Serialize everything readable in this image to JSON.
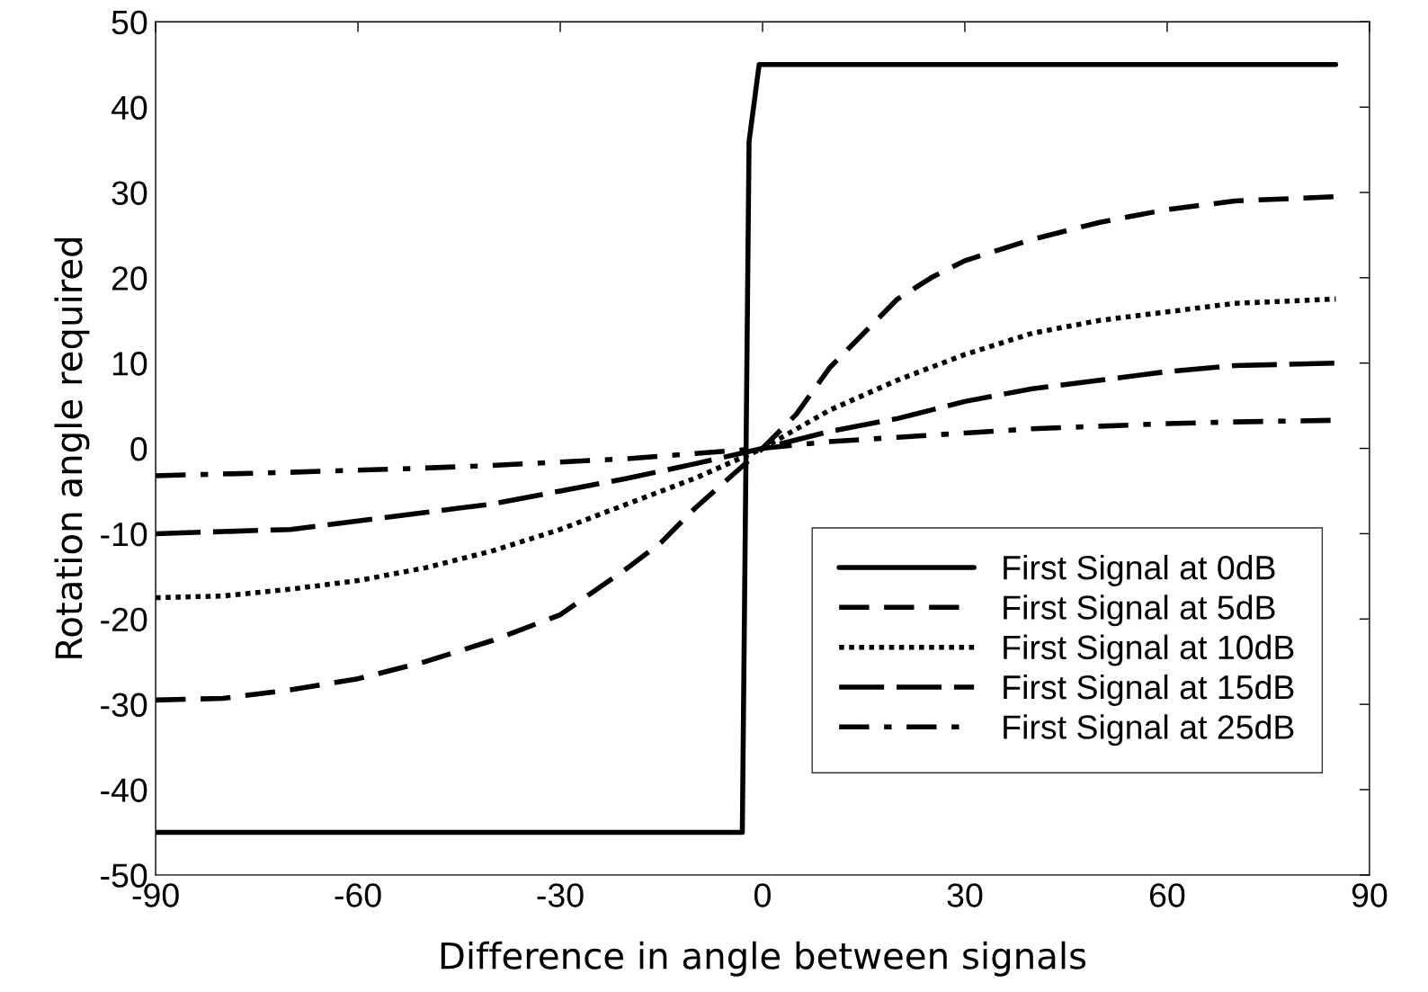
{
  "chart_data": {
    "type": "line",
    "xlabel": "Difference in angle between signals",
    "ylabel": "Rotation angle required",
    "xlim": [
      -90,
      90
    ],
    "ylim": [
      -50,
      50
    ],
    "xticks": [
      -90,
      -60,
      -30,
      0,
      30,
      60,
      90
    ],
    "yticks": [
      -50,
      -40,
      -30,
      -20,
      -10,
      0,
      10,
      20,
      30,
      40,
      50
    ],
    "grid": false,
    "legend": "bottom right",
    "marker": "none",
    "series": [
      {
        "name": "First Signal at 0dB",
        "color": "#000000",
        "line_style": "solid",
        "x": [
          -90,
          -3,
          -2,
          -0.5,
          85
        ],
        "values": [
          -45,
          -45,
          36,
          45,
          45
        ]
      },
      {
        "name": "First Signal at 5dB",
        "color": "#000000",
        "line_style": "dashed",
        "x": [
          -90,
          -80,
          -70,
          -60,
          -50,
          -40,
          -30,
          -20,
          -15,
          -10,
          -5,
          0,
          5,
          10,
          15,
          20,
          25,
          30,
          40,
          50,
          60,
          70,
          85
        ],
        "values": [
          -29.5,
          -29.3,
          -28.3,
          -27,
          -25,
          -22.5,
          -19.5,
          -14,
          -11,
          -7,
          -3.5,
          0,
          4,
          9.5,
          13.5,
          17.5,
          20,
          22,
          24.5,
          26.5,
          28,
          29,
          29.5
        ]
      },
      {
        "name": "First Signal at 10dB",
        "color": "#000000",
        "line_style": "dotted",
        "x": [
          -90,
          -80,
          -70,
          -60,
          -50,
          -40,
          -30,
          -20,
          -10,
          0,
          10,
          20,
          30,
          40,
          50,
          60,
          70,
          85
        ],
        "values": [
          -17.5,
          -17.3,
          -16.5,
          -15.5,
          -14,
          -12,
          -9.5,
          -6.5,
          -3.5,
          0,
          4.5,
          8,
          11,
          13.5,
          15,
          16,
          17,
          17.5
        ]
      },
      {
        "name": "First Signal at 15dB",
        "color": "#000000",
        "line_style": "longdashed",
        "x": [
          -90,
          -70,
          -60,
          -50,
          -40,
          -30,
          -20,
          -10,
          0,
          10,
          20,
          30,
          40,
          50,
          60,
          70,
          85
        ],
        "values": [
          -10,
          -9.5,
          -8.5,
          -7.5,
          -6.5,
          -5,
          -3.5,
          -1.8,
          0,
          2,
          3.5,
          5.5,
          7,
          8,
          9,
          9.7,
          10
        ]
      },
      {
        "name": "First Signal at 25dB",
        "color": "#000000",
        "line_style": "dashdot",
        "x": [
          -90,
          -70,
          -50,
          -40,
          -30,
          -20,
          -10,
          0,
          10,
          20,
          30,
          40,
          50,
          60,
          70,
          85
        ],
        "values": [
          -3.2,
          -2.8,
          -2.3,
          -2,
          -1.6,
          -1.2,
          -0.6,
          0,
          0.8,
          1.3,
          1.8,
          2.3,
          2.6,
          2.9,
          3.1,
          3.3
        ]
      }
    ]
  }
}
